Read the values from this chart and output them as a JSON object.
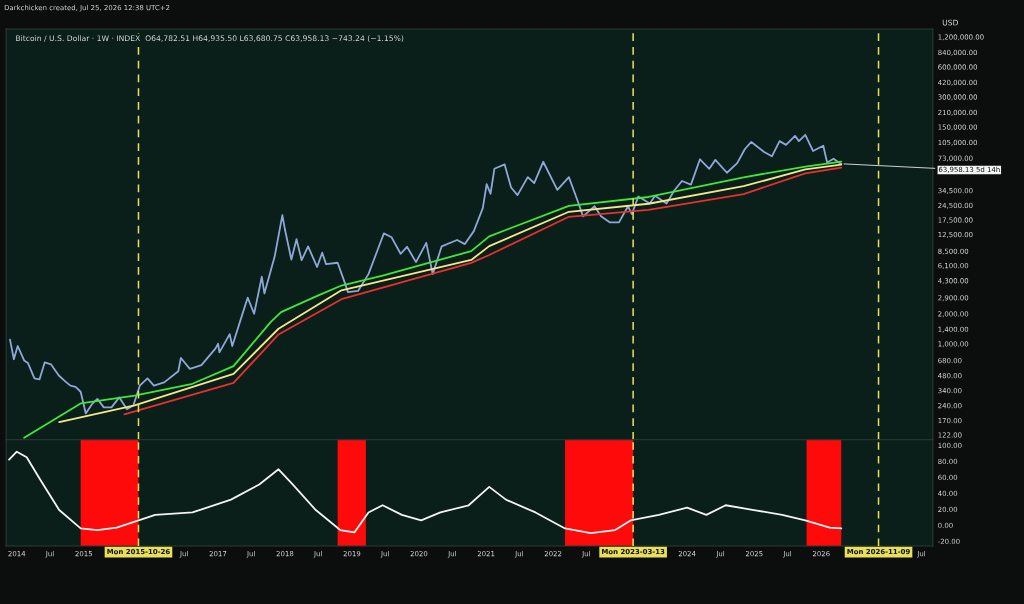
{
  "chart_data": [
    {
      "type": "line",
      "title": "Bitcoin / U.S. Dollar · 1W · INDEX  O64,782.51 H64,935.50 L63,680.75 C63,958.13 −743.24 (−1.15%)",
      "ylabel": "USD",
      "log": "y",
      "grid": false,
      "legend": false,
      "tick_labels": "y",
      "annotations": [
        "Darkchicken created, Jul 25, 2026 12:38 UTC+2",
        {
          "text": "63,958.13 5d 14h",
          "x": "2026-04-20",
          "y": 63958.13
        }
      ],
      "xlim": [
        "2013-11-04",
        "2027-09-01"
      ],
      "ylim": [
        109,
        1440000
      ],
      "yticks": [
        {
          "value": 122,
          "label": "122.00"
        },
        {
          "value": 170,
          "label": "170.00"
        },
        {
          "value": 240,
          "label": "240.00"
        },
        {
          "value": 340,
          "label": "340.00"
        },
        {
          "value": 480,
          "label": "480.00"
        },
        {
          "value": 680,
          "label": "680.00"
        },
        {
          "value": 1000,
          "label": "1,000.00"
        },
        {
          "value": 1400,
          "label": "1,400.00"
        },
        {
          "value": 2000,
          "label": "2,000.00"
        },
        {
          "value": 2900,
          "label": "2,900.00"
        },
        {
          "value": 4300,
          "label": "4,300.00"
        },
        {
          "value": 6100,
          "label": "6,100.00"
        },
        {
          "value": 8500,
          "label": "8,500.00"
        },
        {
          "value": 12500,
          "label": "12,500.00"
        },
        {
          "value": 17500,
          "label": "17,500.00"
        },
        {
          "value": 24500,
          "label": "24,500.00"
        },
        {
          "value": 34500,
          "label": "34,500.00"
        },
        {
          "value": 73000,
          "label": "73,000.00"
        },
        {
          "value": 105000,
          "label": "105,000.00"
        },
        {
          "value": 150000,
          "label": "150,000.00"
        },
        {
          "value": 210000,
          "label": "210,000.00"
        },
        {
          "value": 300000,
          "label": "300,000.00"
        },
        {
          "value": 420000,
          "label": "420,000.00"
        },
        {
          "value": 600000,
          "label": "600,000.00"
        },
        {
          "value": 840000,
          "label": "840,000.00"
        },
        {
          "value": 1200000,
          "label": "1,200,000.00"
        }
      ],
      "ref_lines": [
        {
          "axis": "x",
          "value": "2015-10-26",
          "color": "#e8e05a",
          "line_style": "dashed"
        },
        {
          "axis": "x",
          "value": "2023-03-13",
          "color": "#e8e05a",
          "line_style": "dashed"
        },
        {
          "axis": "x",
          "value": "2026-11-09",
          "color": "#e8e05a",
          "line_style": "dashed"
        }
      ],
      "series": [
        {
          "color": "#8fa6d8",
          "x": [
            "2013-11-25",
            "2013-12-16",
            "2014-01-06",
            "2014-02-10",
            "2014-03-03",
            "2014-04-07",
            "2014-05-05",
            "2014-06-02",
            "2014-07-07",
            "2014-08-18",
            "2014-09-22",
            "2014-10-20",
            "2014-11-17",
            "2014-12-15",
            "2015-01-12",
            "2015-02-16",
            "2015-03-16",
            "2015-04-20",
            "2015-06-01",
            "2015-07-13",
            "2015-08-24",
            "2015-09-28",
            "2015-11-02",
            "2015-12-14",
            "2016-01-18",
            "2016-03-14",
            "2016-05-30",
            "2016-06-13",
            "2016-08-01",
            "2016-10-03",
            "2016-12-19",
            "2017-01-02",
            "2017-01-09",
            "2017-03-06",
            "2017-03-20",
            "2017-05-22",
            "2017-06-12",
            "2017-07-17",
            "2017-08-28",
            "2017-09-11",
            "2017-11-06",
            "2017-12-18",
            "2018-01-01",
            "2018-02-05",
            "2018-03-05",
            "2018-04-02",
            "2018-05-07",
            "2018-06-25",
            "2018-07-23",
            "2018-08-13",
            "2018-10-15",
            "2018-11-19",
            "2018-12-10",
            "2019-02-04",
            "2019-04-01",
            "2019-05-13",
            "2019-06-24",
            "2019-08-05",
            "2019-09-23",
            "2019-10-28",
            "2019-12-16",
            "2020-02-10",
            "2020-03-16",
            "2020-05-04",
            "2020-07-27",
            "2020-09-07",
            "2020-10-26",
            "2020-12-14",
            "2021-01-04",
            "2021-01-25",
            "2021-02-15",
            "2021-04-12",
            "2021-05-17",
            "2021-06-21",
            "2021-08-16",
            "2021-09-20",
            "2021-11-08",
            "2022-01-24",
            "2022-03-28",
            "2022-05-09",
            "2022-06-13",
            "2022-08-15",
            "2022-09-19",
            "2022-11-07",
            "2022-12-26",
            "2023-02-13",
            "2023-03-06",
            "2023-04-10",
            "2023-06-12",
            "2023-07-10",
            "2023-09-11",
            "2023-10-23",
            "2023-12-04",
            "2024-01-22",
            "2024-03-11",
            "2024-05-01",
            "2024-06-03",
            "2024-08-05",
            "2024-09-30",
            "2024-11-11",
            "2024-12-16",
            "2025-02-24",
            "2025-04-07",
            "2025-05-19",
            "2025-06-23",
            "2025-08-11",
            "2025-09-01",
            "2025-10-06",
            "2025-11-17",
            "2026-01-12",
            "2026-02-02",
            "2026-03-09",
            "2026-04-06",
            "2026-04-20"
          ],
          "values": [
            1100,
            700,
            950,
            680,
            640,
            450,
            440,
            650,
            620,
            480,
            420,
            380,
            370,
            330,
            200,
            250,
            280,
            230,
            230,
            290,
            220,
            240,
            380,
            450,
            380,
            410,
            530,
            720,
            560,
            610,
            900,
            1000,
            820,
            1250,
            950,
            2200,
            2900,
            2000,
            4700,
            3200,
            7500,
            19500,
            14000,
            7000,
            11200,
            6900,
            9500,
            5900,
            8200,
            6300,
            6500,
            4300,
            3300,
            3400,
            5000,
            8000,
            12800,
            11700,
            8000,
            9400,
            6600,
            10300,
            5000,
            9500,
            11000,
            10000,
            13500,
            23000,
            40000,
            32000,
            57000,
            63000,
            37000,
            31000,
            47000,
            41000,
            67000,
            35000,
            47000,
            29000,
            19000,
            24000,
            19000,
            16500,
            16500,
            24000,
            20000,
            30000,
            25500,
            30500,
            25500,
            34500,
            43000,
            39500,
            71000,
            57000,
            70000,
            52000,
            65000,
            90000,
            106000,
            84000,
            76000,
            108000,
            99000,
            122000,
            108000,
            125000,
            86000,
            97000,
            66000,
            72000,
            66000,
            63958.13
          ]
        },
        {
          "color": "#3ee83a",
          "x": [
            "2014-02-10",
            "2014-12-15",
            "2015-10-05",
            "2016-08-15",
            "2017-03-27",
            "2017-10-16",
            "2017-12-11",
            "2018-07-02",
            "2018-11-05",
            "2019-06-17",
            "2020-10-12",
            "2021-01-18",
            "2022-03-28",
            "2023-06-05",
            "2024-11-04",
            "2025-10-06",
            "2026-04-20"
          ],
          "values": [
            114,
            252,
            302,
            397,
            597,
            1660,
            2080,
            3060,
            3840,
            4830,
            8510,
            11970,
            24200,
            29700,
            46800,
            60000,
            67300
          ]
        },
        {
          "color": "#f2e88a",
          "x": [
            "2014-08-20",
            "2015-10-05",
            "2017-03-27",
            "2017-11-27",
            "2018-11-05",
            "2020-10-12",
            "2021-01-18",
            "2022-03-28",
            "2023-06-05",
            "2024-11-04",
            "2025-10-06",
            "2026-04-20"
          ],
          "values": [
            164,
            241,
            498,
            1415,
            3440,
            6930,
            9550,
            21100,
            25400,
            38100,
            56100,
            62800
          ]
        },
        {
          "color": "#e8312f",
          "x": [
            "2015-08-10",
            "2017-03-27",
            "2017-11-27",
            "2018-11-05",
            "2020-10-12",
            "2021-01-18",
            "2022-03-28",
            "2023-06-05",
            "2024-11-04",
            "2025-10-06",
            "2026-04-20"
          ],
          "values": [
            196,
            406,
            1240,
            2800,
            6490,
            7780,
            18800,
            22100,
            31800,
            51200,
            58600
          ]
        }
      ]
    },
    {
      "type": "line",
      "grid": false,
      "legend": false,
      "xlim": [
        "2013-11-04",
        "2027-09-01"
      ],
      "ylim": [
        -26,
        107
      ],
      "xticks": [
        {
          "value": "2014",
          "label": "2014"
        },
        {
          "value": "2014-07",
          "label": "Jul"
        },
        {
          "value": "2015",
          "label": "2015"
        },
        {
          "value": "2016-07",
          "label": "Jul"
        },
        {
          "value": "2017",
          "label": "2017"
        },
        {
          "value": "2017-07",
          "label": "Jul"
        },
        {
          "value": "2018",
          "label": "2018"
        },
        {
          "value": "2018-07",
          "label": "Jul"
        },
        {
          "value": "2019",
          "label": "2019"
        },
        {
          "value": "2019-07",
          "label": "Jul"
        },
        {
          "value": "2020",
          "label": "2020"
        },
        {
          "value": "2020-07",
          "label": "Jul"
        },
        {
          "value": "2021",
          "label": "2021"
        },
        {
          "value": "2021-07",
          "label": "Jul"
        },
        {
          "value": "2022",
          "label": "2022"
        },
        {
          "value": "2022-07",
          "label": "Jul"
        },
        {
          "value": "2024",
          "label": "2024"
        },
        {
          "value": "2024-07",
          "label": "Jul"
        },
        {
          "value": "2025",
          "label": "2025"
        },
        {
          "value": "2025-07",
          "label": "Jul"
        },
        {
          "value": "2026",
          "label": "2026"
        },
        {
          "value": "2027-07",
          "label": "Jul"
        }
      ],
      "yticks": [
        {
          "value": -20,
          "label": "-20.00"
        },
        {
          "value": 0,
          "label": "0.00"
        },
        {
          "value": 20,
          "label": "20.00"
        },
        {
          "value": 40,
          "label": "40.00"
        },
        {
          "value": 60,
          "label": "60.00"
        },
        {
          "value": 80,
          "label": "80.00"
        },
        {
          "value": 100,
          "label": "100.00"
        }
      ],
      "ref_lines": [
        {
          "axis": "x",
          "value": "2015-10-26",
          "label": "Mon 2015-10-26",
          "color": "#e8e05a",
          "line_style": "dashed"
        },
        {
          "axis": "x",
          "value": "2023-03-13",
          "label": "Mon 2023-03-13",
          "color": "#e8e05a",
          "line_style": "dashed"
        },
        {
          "axis": "x",
          "value": "2026-11-09",
          "label": "Mon 2026-11-09",
          "color": "#e8e05a",
          "line_style": "dashed"
        }
      ],
      "bands": [
        {
          "axis": "x",
          "from": "2014-12-15",
          "to": "2015-10-26",
          "color": "#ff0a0a"
        },
        {
          "axis": "x",
          "from": "2018-10-15",
          "to": "2019-03-18",
          "color": "#ff0a0a"
        },
        {
          "axis": "x",
          "from": "2022-03-07",
          "to": "2023-03-13",
          "color": "#ff0a0a"
        },
        {
          "axis": "x",
          "from": "2025-10-13",
          "to": "2026-04-20",
          "color": "#ff0a0a"
        }
      ],
      "series": [
        {
          "color": "#f2f2f2",
          "x": [
            "2013-11-20",
            "2014-01-01",
            "2014-02-24",
            "2014-05-09",
            "2014-08-20",
            "2014-12-15",
            "2015-03-16",
            "2015-06-29",
            "2015-09-28",
            "2016-01-25",
            "2016-08-15",
            "2017-03-13",
            "2017-08-14",
            "2017-11-27",
            "2018-02-12",
            "2018-06-18",
            "2018-10-29",
            "2019-01-14",
            "2019-04-01",
            "2019-06-17",
            "2019-09-30",
            "2020-01-13",
            "2020-04-27",
            "2020-09-28",
            "2021-01-18",
            "2021-04-19",
            "2021-09-27",
            "2022-03-07",
            "2022-07-25",
            "2022-12-05",
            "2023-02-27",
            "2023-07-31",
            "2024-01-01",
            "2024-04-15",
            "2024-07-29",
            "2024-12-30",
            "2025-06-02",
            "2025-10-06",
            "2026-02-16",
            "2026-04-20"
          ],
          "values": [
            82,
            92,
            85,
            57,
            19,
            -4,
            -6,
            -3,
            4,
            13,
            16,
            32,
            51,
            70,
            51,
            19,
            -6,
            -9,
            16,
            25,
            13,
            6,
            16,
            25,
            48,
            32,
            16,
            -4,
            -10,
            -6,
            6,
            13,
            22,
            13,
            25,
            19,
            13,
            6,
            -3,
            -4
          ]
        }
      ]
    }
  ]
}
